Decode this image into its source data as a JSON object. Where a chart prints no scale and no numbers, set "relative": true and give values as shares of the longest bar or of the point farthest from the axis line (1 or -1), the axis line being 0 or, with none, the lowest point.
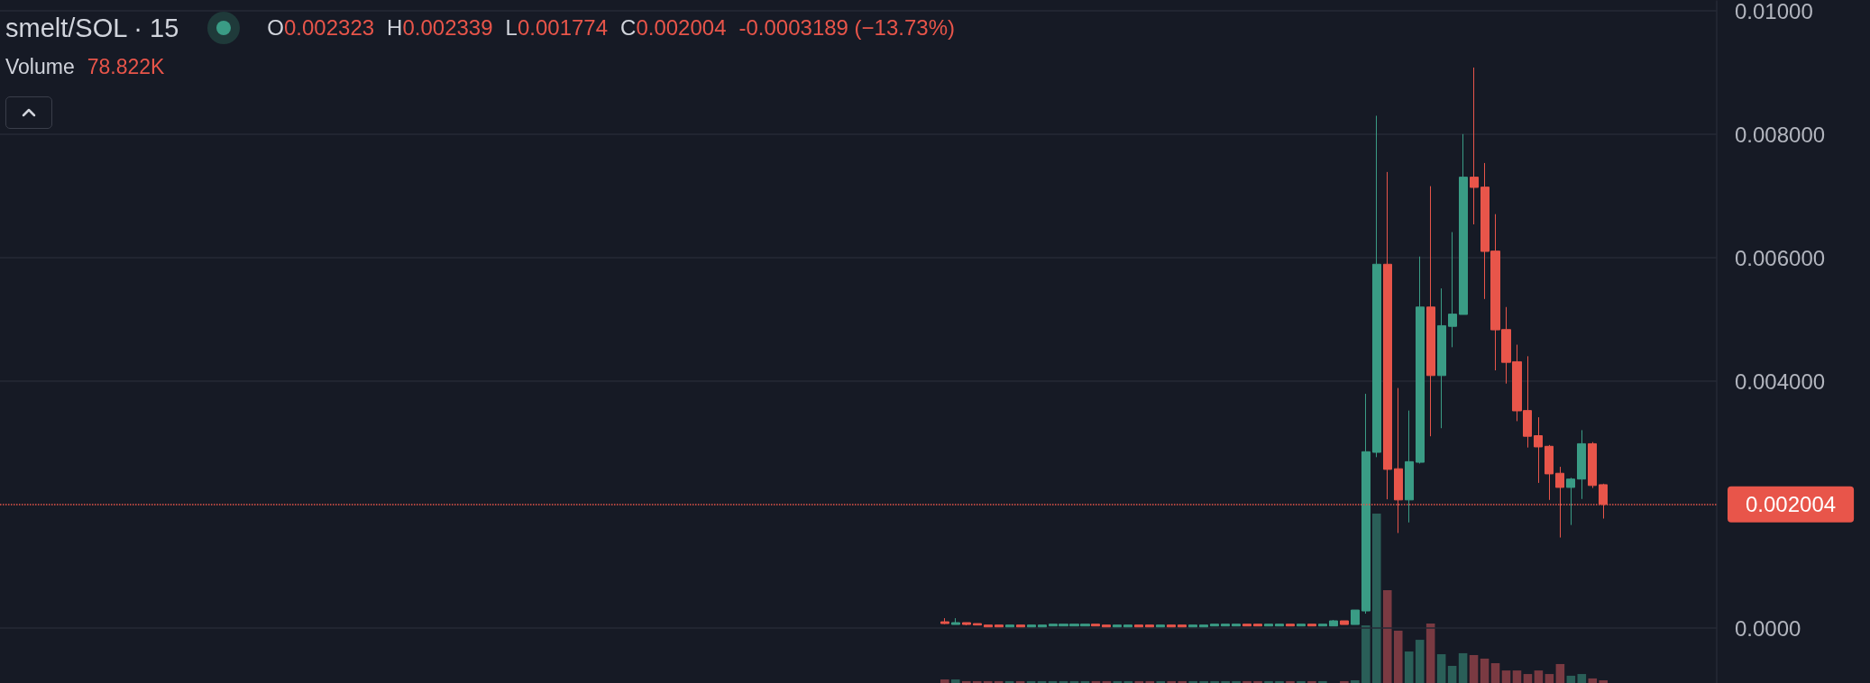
{
  "chart_data": [
    {
      "type": "candlestick",
      "title": "smelt/SOL · 15",
      "annotations": [
        "O0.002323",
        "H0.002339",
        "L0.001774",
        "C0.002004",
        "-0.0003189 (−13.73%)"
      ],
      "categories": [
        null,
        null,
        null,
        null,
        null,
        null,
        null,
        null,
        null,
        null,
        null,
        null,
        null,
        null,
        null,
        null,
        null,
        null,
        null,
        null,
        null,
        null,
        null,
        null,
        null,
        null,
        null,
        null,
        null,
        null,
        null,
        null,
        null,
        null,
        null,
        null,
        null,
        null,
        null,
        null,
        null,
        null,
        null,
        null,
        null,
        null,
        null,
        null,
        null,
        null,
        null,
        null,
        null,
        null,
        null,
        null,
        null,
        null,
        null,
        null,
        null,
        null,
        null,
        null,
        null,
        null,
        null,
        null,
        null,
        null,
        null,
        null,
        null,
        null,
        null,
        null,
        null,
        null,
        null,
        null,
        null,
        null,
        null,
        null,
        null,
        null,
        null,
        null,
        null,
        null,
        null,
        null,
        null,
        null,
        null,
        null,
        null,
        null,
        null,
        null,
        null,
        null,
        null,
        null,
        null,
        null,
        null,
        null,
        null,
        null,
        null,
        null,
        null,
        null,
        null,
        null,
        null,
        null,
        null,
        null,
        null,
        null,
        null,
        null,
        null,
        null,
        null,
        null,
        null,
        null,
        null,
        null,
        null,
        null,
        null,
        null,
        null,
        null,
        null,
        null,
        null,
        null,
        null,
        null,
        null,
        null,
        null,
        null,
        null,
        null,
        null,
        null,
        null,
        null,
        null,
        null,
        null,
        null,
        null
      ],
      "ylim": [
        -0.00089,
        0.01016
      ],
      "yticks": [
        {
          "value": 0,
          "label": "0.0000"
        },
        {
          "value": 0.004,
          "label": "0.004000"
        },
        {
          "value": 0.006,
          "label": "0.006000"
        },
        {
          "value": 0.008,
          "label": "0.008000"
        },
        {
          "value": 0.01,
          "label": "0.01000"
        }
      ],
      "grid": "y",
      "tick_labels": "y",
      "ref_lines": [
        {
          "axis": "y",
          "value": 0.002004,
          "label": "0.002004",
          "color": "#e8554a",
          "line_style": "dotted"
        }
      ],
      "series": [
        {
          "type": "candlestick",
          "ohlc": [
            null,
            null,
            null,
            null,
            null,
            null,
            null,
            null,
            null,
            null,
            null,
            null,
            null,
            null,
            null,
            null,
            null,
            null,
            null,
            null,
            null,
            null,
            null,
            null,
            null,
            null,
            null,
            null,
            null,
            null,
            null,
            null,
            null,
            null,
            null,
            null,
            null,
            null,
            null,
            null,
            null,
            null,
            null,
            null,
            null,
            null,
            null,
            null,
            null,
            null,
            null,
            null,
            null,
            null,
            null,
            null,
            null,
            null,
            null,
            null,
            null,
            null,
            null,
            null,
            null,
            null,
            null,
            null,
            null,
            null,
            null,
            null,
            null,
            null,
            null,
            null,
            null,
            null,
            null,
            null,
            null,
            null,
            null,
            null,
            null,
            null,
            null,
            [
              0.000102,
              0.00016,
              6.3e-05,
              7.3e-05
            ],
            [
              5.8e-05,
              0.00016,
              5.8e-05,
              8.8e-05
            ],
            [
              8.8e-05,
              8.8e-05,
              4.4e-05,
              5.8e-05
            ],
            [
              7.3e-05,
              7.3e-05,
              4.9e-05,
              4.9e-05
            ],
            [
              4.9e-05,
              4.9e-05,
              1.9e-05,
              1.9e-05
            ],
            [
              4.9e-05,
              4.9e-05,
              1.9e-05,
              1.9e-05
            ],
            [
              1.9e-05,
              4.9e-05,
              1.9e-05,
              4.9e-05
            ],
            [
              4.9e-05,
              4.9e-05,
              1.9e-05,
              1.9e-05
            ],
            [
              1.9e-05,
              4.9e-05,
              1.9e-05,
              4.9e-05
            ],
            [
              1.9e-05,
              4.9e-05,
              1.9e-05,
              4.9e-05
            ],
            [
              3.4e-05,
              6.3e-05,
              3.4e-05,
              6.3e-05
            ],
            [
              3.4e-05,
              6.3e-05,
              3.4e-05,
              6.3e-05
            ],
            [
              3.4e-05,
              6.3e-05,
              3.4e-05,
              6.3e-05
            ],
            [
              3.4e-05,
              6.3e-05,
              3.4e-05,
              6.3e-05
            ],
            [
              6.3e-05,
              6.3e-05,
              3.4e-05,
              3.4e-05
            ],
            [
              4.9e-05,
              4.9e-05,
              1.9e-05,
              1.9e-05
            ],
            [
              1.9e-05,
              4.9e-05,
              1.9e-05,
              4.9e-05
            ],
            [
              1.9e-05,
              4.9e-05,
              1.9e-05,
              4.9e-05
            ],
            [
              4.9e-05,
              4.9e-05,
              1.9e-05,
              1.9e-05
            ],
            [
              4.9e-05,
              4.9e-05,
              1.9e-05,
              1.9e-05
            ],
            [
              1.9e-05,
              4.9e-05,
              1.9e-05,
              4.9e-05
            ],
            [
              4.9e-05,
              4.9e-05,
              1.9e-05,
              1.9e-05
            ],
            [
              4.9e-05,
              4.9e-05,
              1.9e-05,
              1.9e-05
            ],
            [
              1.9e-05,
              4.9e-05,
              1.9e-05,
              4.9e-05
            ],
            [
              1.9e-05,
              4.9e-05,
              1.9e-05,
              4.9e-05
            ],
            [
              3.4e-05,
              6.3e-05,
              3.4e-05,
              6.3e-05
            ],
            [
              3.4e-05,
              6.3e-05,
              3.4e-05,
              6.3e-05
            ],
            [
              3.4e-05,
              6.3e-05,
              3.4e-05,
              6.3e-05
            ],
            [
              6.3e-05,
              6.3e-05,
              3.4e-05,
              3.4e-05
            ],
            [
              6.3e-05,
              6.3e-05,
              3.4e-05,
              3.4e-05
            ],
            [
              3.4e-05,
              6.3e-05,
              3.4e-05,
              6.3e-05
            ],
            [
              3.4e-05,
              6.3e-05,
              3.4e-05,
              6.3e-05
            ],
            [
              6.3e-05,
              6.3e-05,
              3.4e-05,
              3.4e-05
            ],
            [
              3.4e-05,
              6.3e-05,
              3.4e-05,
              6.3e-05
            ],
            [
              6.3e-05,
              6.3e-05,
              3.4e-05,
              3.4e-05
            ],
            [
              3.4e-05,
              6.3e-05,
              3.4e-05,
              6.3e-05
            ],
            [
              3.4e-05,
              0.000131,
              3.4e-05,
              0.000117
            ],
            [
              0.000117,
              0.000117,
              5.8e-05,
              5.8e-05
            ],
            [
              5.8e-05,
              0.000292,
              5.8e-05,
              0.000292
            ],
            [
              0.000277,
              0.003795,
              0.000233,
              0.002857
            ],
            [
              0.002847,
              0.0083,
              0.002769,
              0.005894
            ],
            [
              0.005894,
              0.007389,
              0.002086,
              0.002571
            ],
            [
              0.002581,
              0.003889,
              0.00154,
              0.002076
            ],
            [
              0.002076,
              0.003524,
              0.001711,
              0.002696
            ],
            [
              0.002686,
              0.006019,
              0.002665,
              0.005201
            ],
            [
              0.005201,
              0.007159,
              0.003107,
              0.004091
            ],
            [
              0.004091,
              0.005503,
              0.003238,
              0.004899
            ],
            [
              0.004888,
              0.006415,
              0.00455,
              0.005086
            ],
            [
              0.005081,
              0.008003,
              0.005081,
              0.007305
            ],
            [
              0.007305,
              0.009081,
              0.00654,
              0.007139
            ],
            [
              0.007144,
              0.007534,
              0.005331,
              0.006102
            ],
            [
              0.006107,
              0.006706,
              0.004175,
              0.004831
            ],
            [
              0.004836,
              0.005201,
              0.003961,
              0.004305
            ],
            [
              0.004315,
              0.004591,
              0.003352,
              0.003519
            ],
            [
              0.003524,
              0.004404,
              0.002925,
              0.003107
            ],
            [
              0.003117,
              0.003415,
              0.002352,
              0.002935
            ],
            [
              0.002945,
              0.002966,
              0.002076,
              0.002498
            ],
            [
              0.002508,
              0.002612,
              0.001467,
              0.002279
            ],
            [
              0.002279,
              0.002435,
              0.00167,
              0.002414
            ],
            [
              0.002414,
              0.003206,
              0.002091,
              0.002987
            ],
            [
              0.002987,
              0.003013,
              0.002269,
              0.00231
            ],
            [
              0.002323,
              0.002339,
              0.001774,
              0.002004
            ],
            null,
            null,
            null,
            null,
            null,
            null,
            null,
            null,
            null,
            null
          ],
          "colors": [
            null,
            null,
            null,
            null,
            null,
            null,
            null,
            null,
            null,
            null,
            null,
            null,
            null,
            null,
            null,
            null,
            null,
            null,
            null,
            null,
            null,
            null,
            null,
            null,
            null,
            null,
            null,
            null,
            null,
            null,
            null,
            null,
            null,
            null,
            null,
            null,
            null,
            null,
            null,
            null,
            null,
            null,
            null,
            null,
            null,
            null,
            null,
            null,
            null,
            null,
            null,
            null,
            null,
            null,
            null,
            null,
            null,
            null,
            null,
            null,
            null,
            null,
            null,
            null,
            null,
            null,
            null,
            null,
            null,
            null,
            null,
            null,
            null,
            null,
            null,
            null,
            null,
            null,
            null,
            null,
            null,
            null,
            null,
            null,
            null,
            null,
            null,
            "#e8554a",
            "#3a9c85",
            "#e8554a",
            "#e8554a",
            "#e8554a",
            "#e8554a",
            "#3a9c85",
            "#e8554a",
            "#3a9c85",
            "#3a9c85",
            "#3a9c85",
            "#3a9c85",
            "#3a9c85",
            "#3a9c85",
            "#e8554a",
            "#e8554a",
            "#3a9c85",
            "#3a9c85",
            "#e8554a",
            "#e8554a",
            "#3a9c85",
            "#e8554a",
            "#e8554a",
            "#3a9c85",
            "#3a9c85",
            "#3a9c85",
            "#3a9c85",
            "#3a9c85",
            "#e8554a",
            "#e8554a",
            "#3a9c85",
            "#3a9c85",
            "#e8554a",
            "#3a9c85",
            "#e8554a",
            "#3a9c85",
            "#3a9c85",
            "#e8554a",
            "#3a9c85",
            "#3a9c85",
            "#3a9c85",
            "#e8554a",
            "#e8554a",
            "#3a9c85",
            "#3a9c85",
            "#e8554a",
            "#3a9c85",
            "#3a9c85",
            "#3a9c85",
            "#e8554a",
            "#e8554a",
            "#e8554a",
            "#e8554a",
            "#e8554a",
            "#e8554a",
            "#e8554a",
            "#e8554a",
            "#e8554a",
            "#3a9c85",
            "#3a9c85",
            "#e8554a",
            "#e8554a",
            null,
            null,
            null,
            null,
            null,
            null,
            null,
            null,
            null,
            null
          ]
        }
      ]
    },
    {
      "type": "bar",
      "title": "Volume",
      "annotations": [
        "78.822K"
      ],
      "relative": true,
      "tick_labels": false,
      "categories": [
        null,
        null,
        null,
        null,
        null,
        null,
        null,
        null,
        null,
        null,
        null,
        null,
        null,
        null,
        null,
        null,
        null,
        null,
        null,
        null,
        null,
        null,
        null,
        null,
        null,
        null,
        null,
        null,
        null,
        null,
        null,
        null,
        null,
        null,
        null,
        null,
        null,
        null,
        null,
        null,
        null,
        null,
        null,
        null,
        null,
        null,
        null,
        null,
        null,
        null,
        null,
        null,
        null,
        null,
        null,
        null,
        null,
        null,
        null,
        null,
        null,
        null,
        null,
        null,
        null,
        null,
        null,
        null,
        null,
        null,
        null,
        null,
        null,
        null,
        null,
        null,
        null,
        null,
        null,
        null,
        null,
        null,
        null,
        null,
        null,
        null,
        null,
        null,
        null,
        null,
        null,
        null,
        null,
        null,
        null,
        null,
        null,
        null,
        null,
        null,
        null,
        null,
        null,
        null,
        null,
        null,
        null,
        null,
        null,
        null,
        null,
        null,
        null,
        null,
        null,
        null,
        null,
        null,
        null,
        null,
        null,
        null,
        null,
        null,
        null,
        null,
        null,
        null,
        null,
        null,
        null,
        null,
        null,
        null,
        null,
        null,
        null,
        null,
        null,
        null,
        null,
        null,
        null,
        null,
        null,
        null,
        null,
        null,
        null,
        null,
        null,
        null,
        null,
        null,
        null,
        null,
        null,
        null,
        null
      ],
      "values": [
        null,
        null,
        null,
        null,
        null,
        null,
        null,
        null,
        null,
        null,
        null,
        null,
        null,
        null,
        null,
        null,
        null,
        null,
        null,
        null,
        null,
        null,
        null,
        null,
        null,
        null,
        null,
        null,
        null,
        null,
        null,
        null,
        null,
        null,
        null,
        null,
        null,
        null,
        null,
        null,
        null,
        null,
        null,
        null,
        null,
        null,
        null,
        null,
        null,
        null,
        null,
        null,
        null,
        null,
        null,
        null,
        null,
        null,
        null,
        null,
        null,
        null,
        null,
        null,
        null,
        null,
        null,
        null,
        null,
        null,
        null,
        null,
        null,
        null,
        null,
        null,
        null,
        null,
        null,
        null,
        null,
        null,
        null,
        null,
        null,
        null,
        null,
        0.021,
        0.021,
        0.011,
        0.011,
        0.011,
        0.011,
        0.011,
        0.011,
        0.011,
        0.011,
        0.011,
        0.011,
        0.011,
        0.011,
        0.011,
        0.011,
        0.011,
        0.011,
        0.011,
        0.011,
        0.011,
        0.011,
        0.011,
        0.011,
        0.011,
        0.011,
        0.011,
        0.011,
        0.011,
        0.011,
        0.011,
        0.011,
        0.011,
        0.011,
        0.011,
        0.011,
        null,
        0.011,
        0.016,
        0.34,
        1,
        0.548,
        0.309,
        0.186,
        0.255,
        0.351,
        0.17,
        0.101,
        0.176,
        0.165,
        0.144,
        0.117,
        0.074,
        0.074,
        0.053,
        0.074,
        0.053,
        0.112,
        0.043,
        0.053,
        0.027,
        0.016,
        null,
        null,
        null,
        null,
        null,
        null,
        null,
        null,
        null,
        null
      ],
      "colors": [
        null,
        null,
        null,
        null,
        null,
        null,
        null,
        null,
        null,
        null,
        null,
        null,
        null,
        null,
        null,
        null,
        null,
        null,
        null,
        null,
        null,
        null,
        null,
        null,
        null,
        null,
        null,
        null,
        null,
        null,
        null,
        null,
        null,
        null,
        null,
        null,
        null,
        null,
        null,
        null,
        null,
        null,
        null,
        null,
        null,
        null,
        null,
        null,
        null,
        null,
        null,
        null,
        null,
        null,
        null,
        null,
        null,
        null,
        null,
        null,
        null,
        null,
        null,
        null,
        null,
        null,
        null,
        null,
        null,
        null,
        null,
        null,
        null,
        null,
        null,
        null,
        null,
        null,
        null,
        null,
        null,
        null,
        null,
        null,
        null,
        null,
        null,
        "#7a3a42",
        "#2a5f58",
        "#7a3a42",
        "#7a3a42",
        "#7a3a42",
        "#7a3a42",
        "#2a5f58",
        "#7a3a42",
        "#2a5f58",
        "#2a5f58",
        "#2a5f58",
        "#2a5f58",
        "#2a5f58",
        "#2a5f58",
        "#7a3a42",
        "#7a3a42",
        "#2a5f58",
        "#2a5f58",
        "#7a3a42",
        "#7a3a42",
        "#2a5f58",
        "#7a3a42",
        "#7a3a42",
        "#2a5f58",
        "#2a5f58",
        "#2a5f58",
        "#2a5f58",
        "#2a5f58",
        "#7a3a42",
        "#7a3a42",
        "#2a5f58",
        "#2a5f58",
        "#7a3a42",
        "#2a5f58",
        "#7a3a42",
        "#2a5f58",
        null,
        "#7a3a42",
        "#2a5f58",
        "#2a5f58",
        "#2a5f58",
        "#7a3a42",
        "#7a3a42",
        "#2a5f58",
        "#2a5f58",
        "#7a3a42",
        "#2a5f58",
        "#2a5f58",
        "#2a5f58",
        "#7a3a42",
        "#7a3a42",
        "#7a3a42",
        "#7a3a42",
        "#7a3a42",
        "#7a3a42",
        "#7a3a42",
        "#7a3a42",
        "#7a3a42",
        "#2a5f58",
        "#2a5f58",
        "#7a3a42",
        "#7a3a42",
        null,
        null,
        null,
        null,
        null,
        null,
        null,
        null,
        null,
        null
      ]
    }
  ]
}
